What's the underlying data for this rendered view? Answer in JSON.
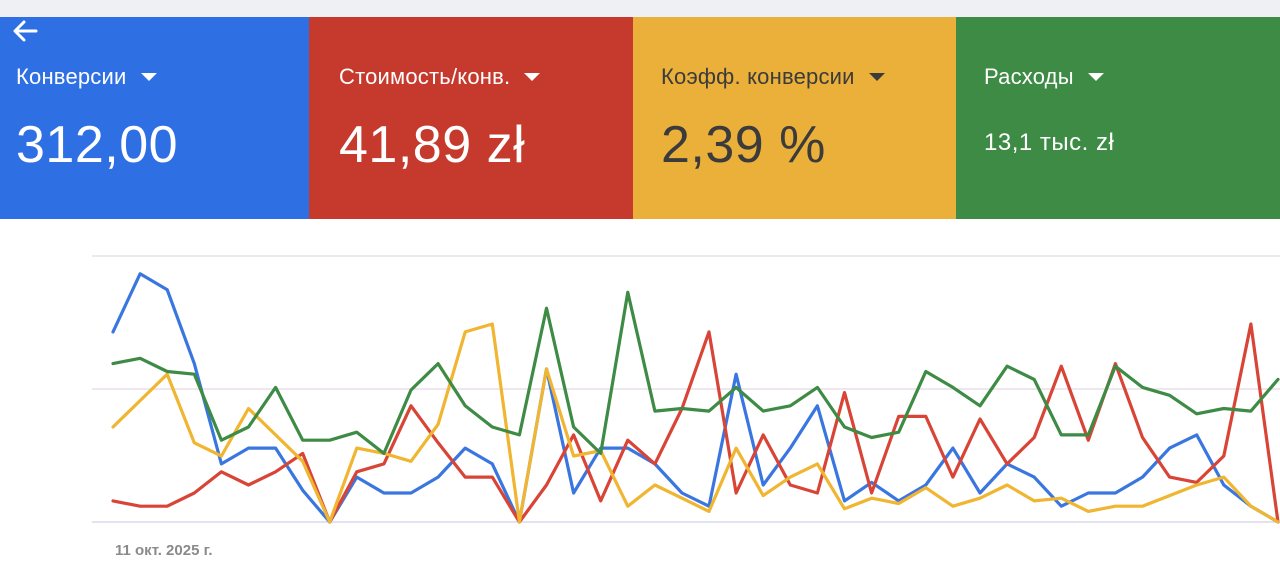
{
  "metrics": [
    {
      "label": "Конверсии",
      "value": "312,00",
      "color": "#2f6fe4"
    },
    {
      "label": "Стоимость/конв.",
      "value": "41,89 zł",
      "color": "#c63a2e"
    },
    {
      "label": "Коэфф. конверсии",
      "value": "2,39 %",
      "color": "#eab039"
    },
    {
      "label": "Расходы",
      "value": "13,1 тыс. zł",
      "color": "#3d8b45"
    }
  ],
  "icons": {
    "back": "arrow-left-icon",
    "dropdown": "caret-down-icon"
  },
  "chart": {
    "date_label": "11 окт. 2025 г."
  },
  "chart_data": {
    "type": "line",
    "x_start_label": "11 окт. 2025 г.",
    "y_normalized_range": [
      0,
      1
    ],
    "grid": true,
    "series": [
      {
        "color": "#3a76e0",
        "values": [
          0.72,
          0.94,
          0.88,
          0.6,
          0.22,
          0.28,
          0.28,
          0.12,
          0.0,
          0.17,
          0.11,
          0.11,
          0.17,
          0.28,
          0.22,
          0.0,
          0.58,
          0.11,
          0.28,
          0.28,
          0.22,
          0.11,
          0.06,
          0.56,
          0.14,
          0.28,
          0.44,
          0.08,
          0.15,
          0.08,
          0.14,
          0.28,
          0.11,
          0.22,
          0.17,
          0.06,
          0.11,
          0.11,
          0.17,
          0.28,
          0.33,
          0.14,
          0.06,
          0.0
        ]
      },
      {
        "color": "#d84436",
        "values": [
          0.08,
          0.06,
          0.06,
          0.11,
          0.19,
          0.14,
          0.19,
          0.26,
          0.0,
          0.19,
          0.22,
          0.44,
          0.3,
          0.17,
          0.17,
          0.0,
          0.14,
          0.33,
          0.08,
          0.31,
          0.22,
          0.43,
          0.72,
          0.11,
          0.33,
          0.14,
          0.11,
          0.49,
          0.11,
          0.4,
          0.4,
          0.17,
          0.39,
          0.22,
          0.32,
          0.59,
          0.31,
          0.6,
          0.32,
          0.17,
          0.15,
          0.25,
          0.75,
          0.0
        ]
      },
      {
        "color": "#f0b531",
        "values": [
          0.36,
          0.46,
          0.56,
          0.3,
          0.25,
          0.43,
          0.33,
          0.23,
          0.0,
          0.28,
          0.26,
          0.23,
          0.37,
          0.72,
          0.75,
          0.0,
          0.58,
          0.25,
          0.27,
          0.06,
          0.14,
          0.09,
          0.04,
          0.28,
          0.1,
          0.17,
          0.22,
          0.05,
          0.09,
          0.07,
          0.13,
          0.06,
          0.09,
          0.14,
          0.08,
          0.09,
          0.04,
          0.06,
          0.06,
          0.1,
          0.14,
          0.17,
          0.06,
          0.0
        ]
      },
      {
        "color": "#3d8b45",
        "values": [
          0.6,
          0.62,
          0.57,
          0.56,
          0.31,
          0.36,
          0.51,
          0.31,
          0.31,
          0.34,
          0.26,
          0.5,
          0.6,
          0.44,
          0.36,
          0.33,
          0.81,
          0.36,
          0.26,
          0.87,
          0.42,
          0.43,
          0.42,
          0.51,
          0.42,
          0.44,
          0.51,
          0.36,
          0.32,
          0.34,
          0.57,
          0.51,
          0.44,
          0.59,
          0.54,
          0.33,
          0.33,
          0.59,
          0.51,
          0.48,
          0.41,
          0.43,
          0.42,
          0.54
        ]
      }
    ]
  }
}
